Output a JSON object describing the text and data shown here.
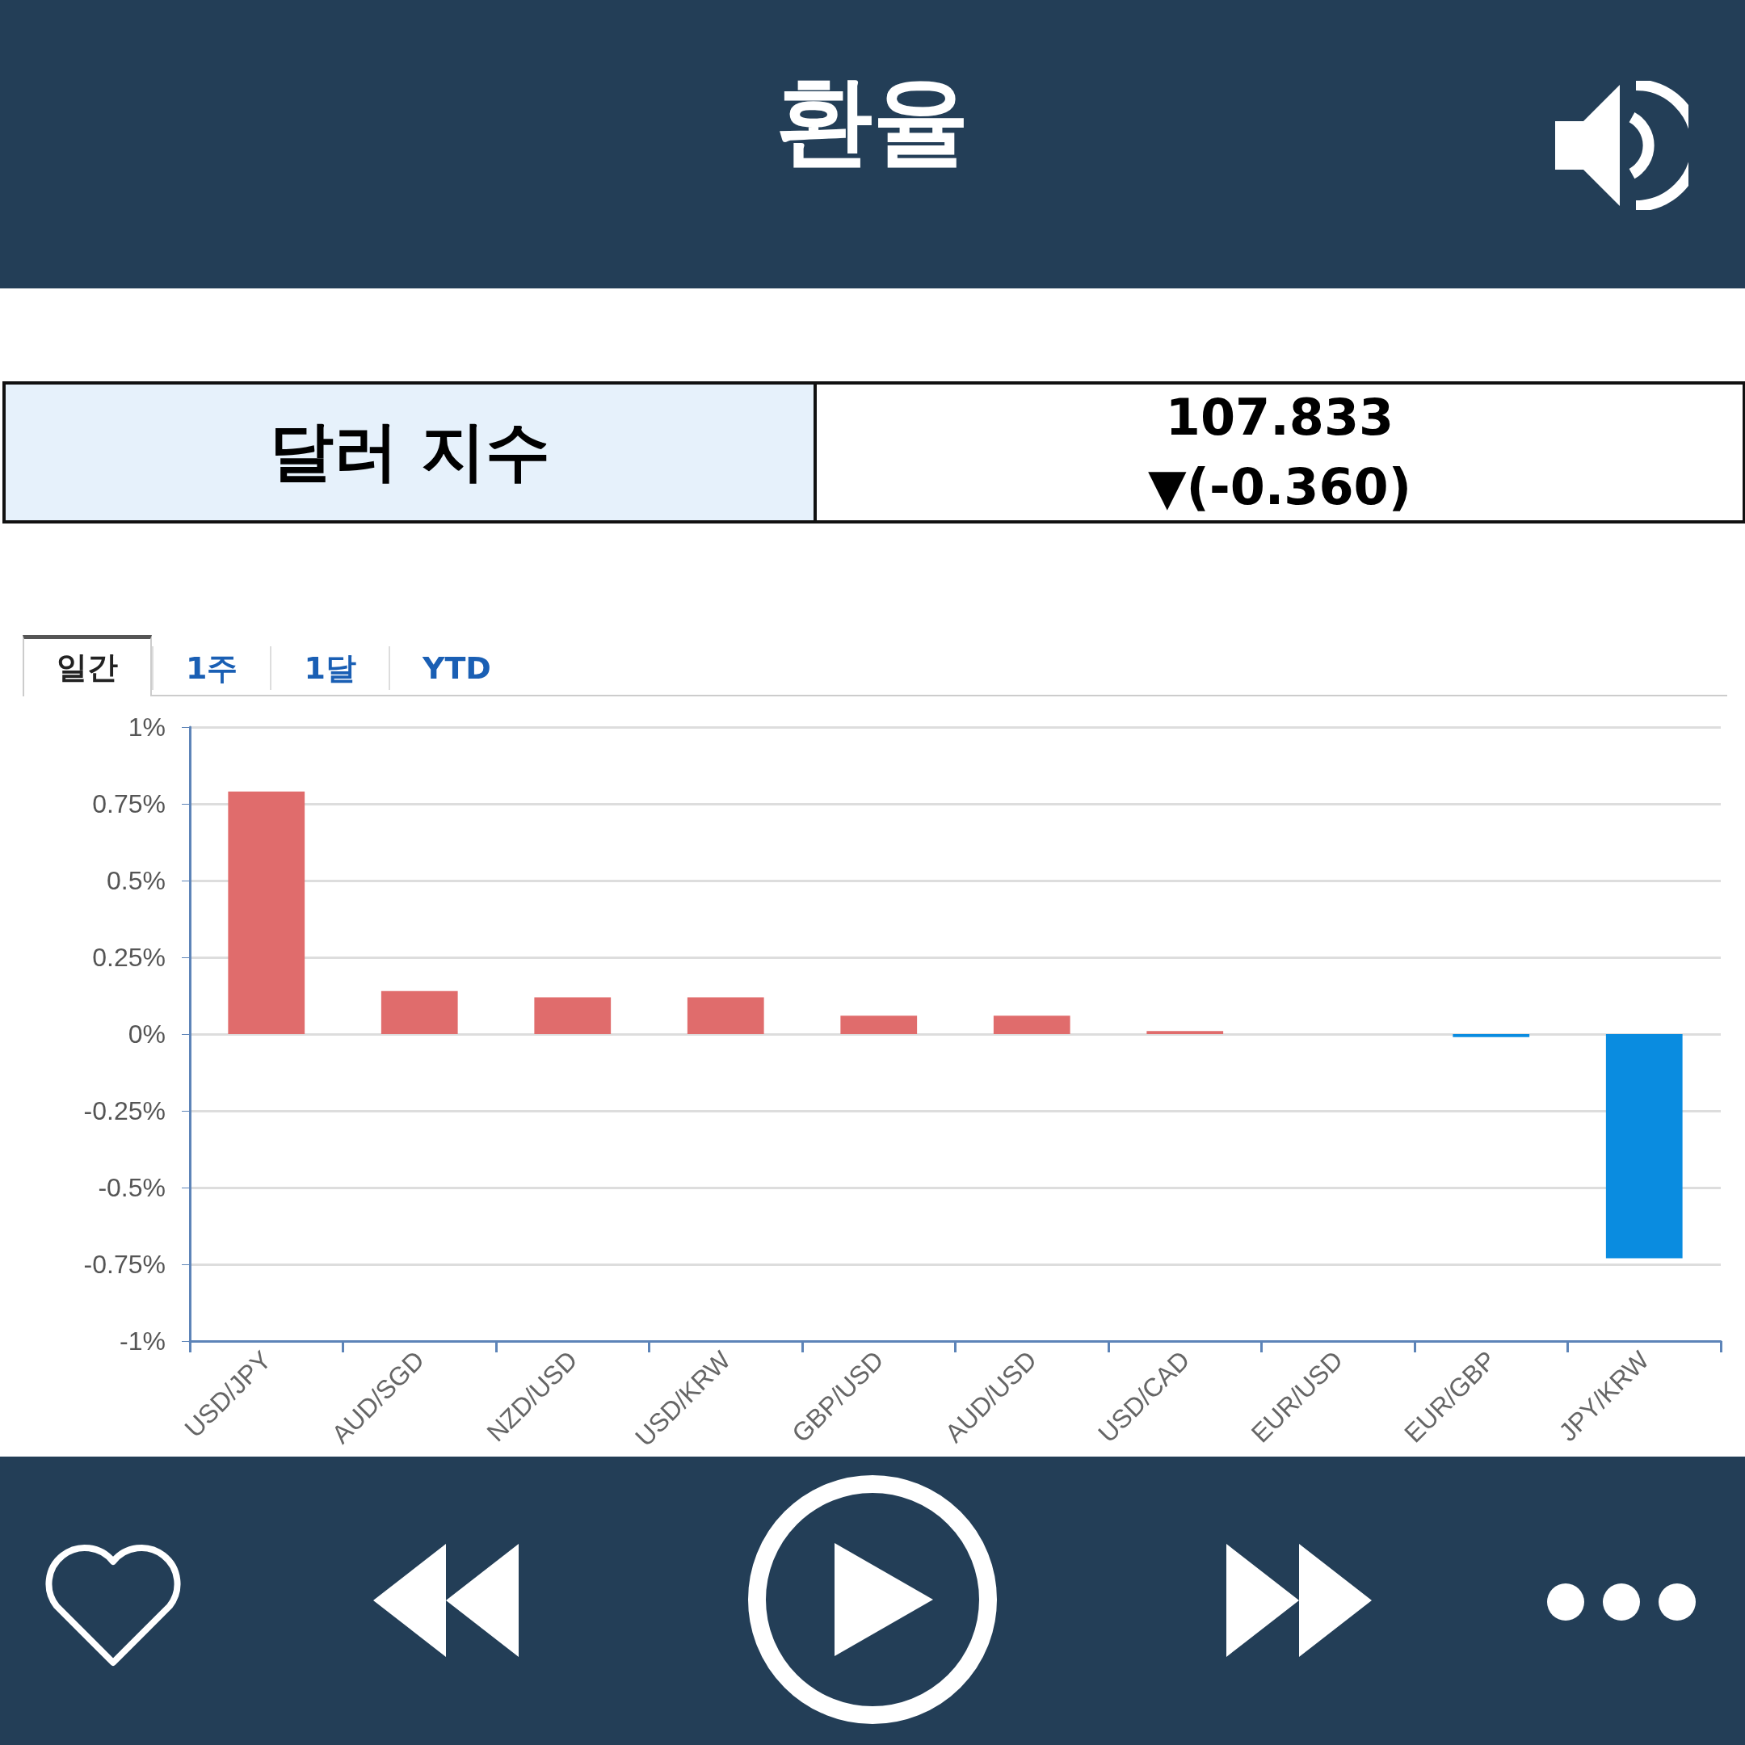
{
  "chart_data": {
    "type": "bar",
    "title": "환율",
    "annotations": [
      "달러 지수",
      "107.833",
      "▼(-0.360)",
      "일간",
      "1주",
      "1달",
      "YTD"
    ],
    "categories": [
      "USD/JPY",
      "AUD/SGD",
      "NZD/USD",
      "USD/KRW",
      "GBP/USD",
      "AUD/USD",
      "USD/CAD",
      "EUR/USD",
      "EUR/GBP",
      "JPY/KRW"
    ],
    "values": [
      0.79,
      0.14,
      0.12,
      0.12,
      0.06,
      0.06,
      0.01,
      0,
      -0.01,
      -0.73
    ],
    "colors": [
      "#e06c6c",
      "#e06c6c",
      "#e06c6c",
      "#e06c6c",
      "#e06c6c",
      "#e06c6c",
      "#e06c6c",
      "#e06c6c",
      "#0a8ce0",
      "#0a8ce0"
    ],
    "ylim": [
      -1,
      1
    ],
    "yticks": [
      {
        "value": -1,
        "label": "-1%"
      },
      {
        "value": -0.75,
        "label": "-0.75%"
      },
      {
        "value": -0.5,
        "label": "-0.5%"
      },
      {
        "value": -0.25,
        "label": "-0.25%"
      },
      {
        "value": 0,
        "label": "0%"
      },
      {
        "value": 0.25,
        "label": "0.25%"
      },
      {
        "value": 0.5,
        "label": "0.5%"
      },
      {
        "value": 0.75,
        "label": "0.75%"
      },
      {
        "value": 1,
        "label": "1%"
      }
    ],
    "grid": "y"
  }
}
